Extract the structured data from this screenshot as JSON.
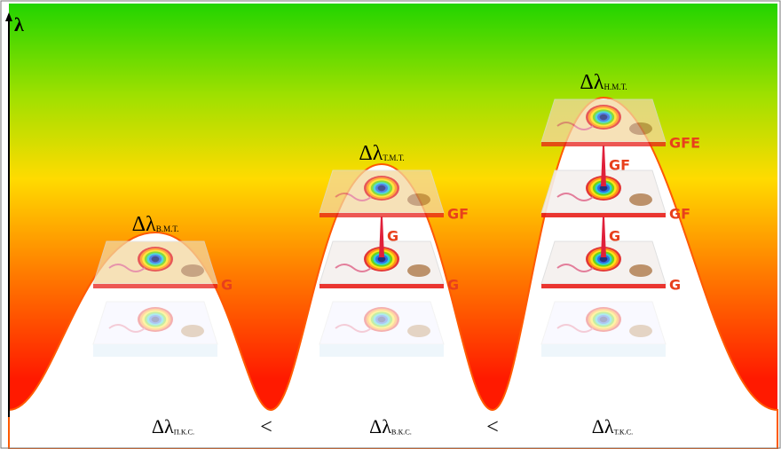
{
  "axis_label": "λ",
  "peaks": [
    {
      "delta": "Δλ",
      "subscript": "В.М.Т.",
      "layers": [
        "G"
      ]
    },
    {
      "delta": "Δλ",
      "subscript": "Т.М.Т.",
      "layers": [
        "G",
        "GF"
      ],
      "connectors": [
        "G"
      ]
    },
    {
      "delta": "Δλ",
      "subscript": "Н.М.Т.",
      "layers": [
        "G",
        "GF",
        "GFE"
      ],
      "connectors": [
        "G",
        "GF"
      ]
    }
  ],
  "bottom": [
    {
      "delta": "Δλ",
      "subscript": "П.К.С."
    },
    {
      "delta": "Δλ",
      "subscript": "В.К.С."
    },
    {
      "delta": "Δλ",
      "subscript": "Т.К.С."
    }
  ],
  "relations": [
    "<",
    "<"
  ]
}
